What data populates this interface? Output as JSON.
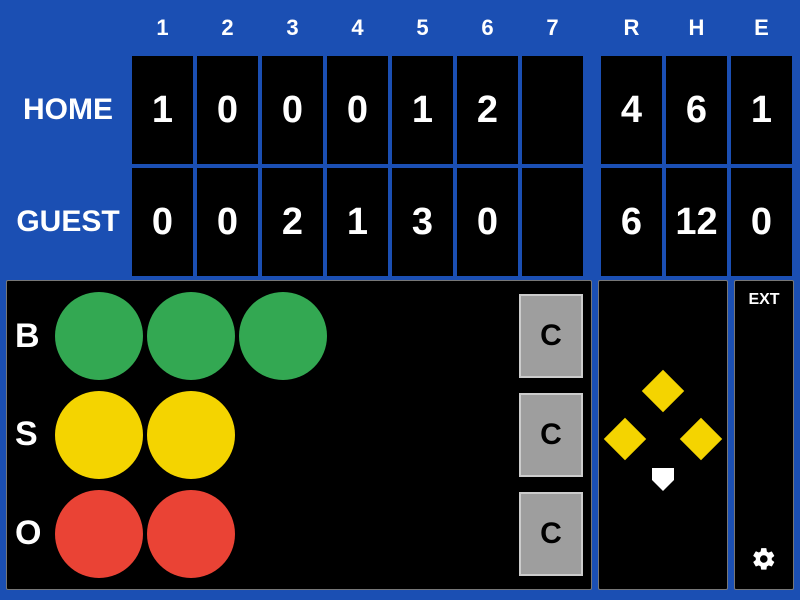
{
  "colors": {
    "board_bg": "#1b4fb3",
    "cell_bg": "#000000",
    "text": "#ffffff",
    "ball": "#33a852",
    "strike": "#f4d400",
    "out": "#ea4335",
    "light_off": "#000000",
    "btn_bg": "#9e9e9e",
    "base_on": "#f4d400",
    "home_plate": "#ffffff"
  },
  "innings": {
    "headers": [
      "1",
      "2",
      "3",
      "4",
      "5",
      "6",
      "7"
    ],
    "count": 7
  },
  "totals": {
    "headers": [
      "R",
      "H",
      "E"
    ]
  },
  "teams": {
    "home": {
      "label": "HOME",
      "innings": [
        "1",
        "0",
        "0",
        "0",
        "1",
        "2",
        ""
      ],
      "totals": [
        "4",
        "6",
        "1"
      ]
    },
    "guest": {
      "label": "GUEST",
      "innings": [
        "0",
        "0",
        "2",
        "1",
        "3",
        "0",
        ""
      ],
      "totals": [
        "6",
        "12",
        "0"
      ]
    }
  },
  "bso": {
    "rows": [
      {
        "label": "B",
        "max": 3,
        "lit": 3,
        "color_key": "ball"
      },
      {
        "label": "S",
        "max": 2,
        "lit": 2,
        "color_key": "strike"
      },
      {
        "label": "O",
        "max": 2,
        "lit": 2,
        "color_key": "out"
      }
    ],
    "clear_label": "C"
  },
  "bases": {
    "first": true,
    "second": true,
    "third": true
  },
  "ext": {
    "label": "EXT"
  }
}
